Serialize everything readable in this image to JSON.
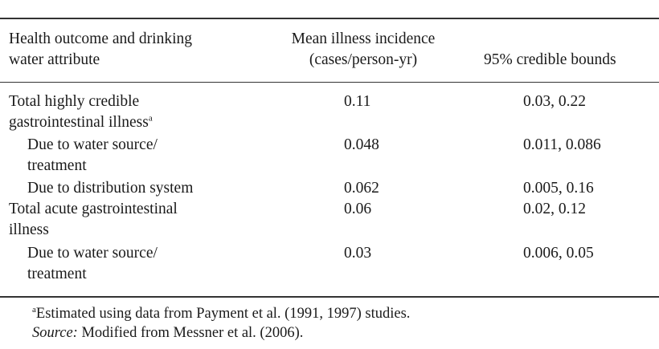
{
  "header": {
    "col1_line1": "Health outcome and drinking",
    "col1_line2": "water attribute",
    "col2_line1": "Mean illness incidence",
    "col2_line2": "(cases/person-yr)",
    "col3": "95% credible bounds"
  },
  "rows": [
    {
      "label_line1": "Total highly credible",
      "label_line2": "gastrointestinal illness",
      "label_sup": "a",
      "mean": "0.11",
      "bounds": "0.03, 0.22"
    },
    {
      "label_line1": "Due to water source/",
      "label_line2": "treatment",
      "mean": "0.048",
      "bounds": "0.011, 0.086"
    },
    {
      "label_line1": "Due to distribution system",
      "mean": "0.062",
      "bounds": "0.005, 0.16"
    },
    {
      "label_line1": "Total acute gastrointestinal",
      "label_line2": "illness",
      "mean": "0.06",
      "bounds": "0.02, 0.12"
    },
    {
      "label_line1": "Due to water source/",
      "label_line2": "treatment",
      "mean": "0.03",
      "bounds": "0.006, 0.05"
    }
  ],
  "footnotes": {
    "a_marker": "a",
    "a_text": "Estimated using data from Payment et al. (1991, 1997) studies.",
    "source_label": "Source:",
    "source_text": " Modified from Messner et al. (2006)."
  }
}
